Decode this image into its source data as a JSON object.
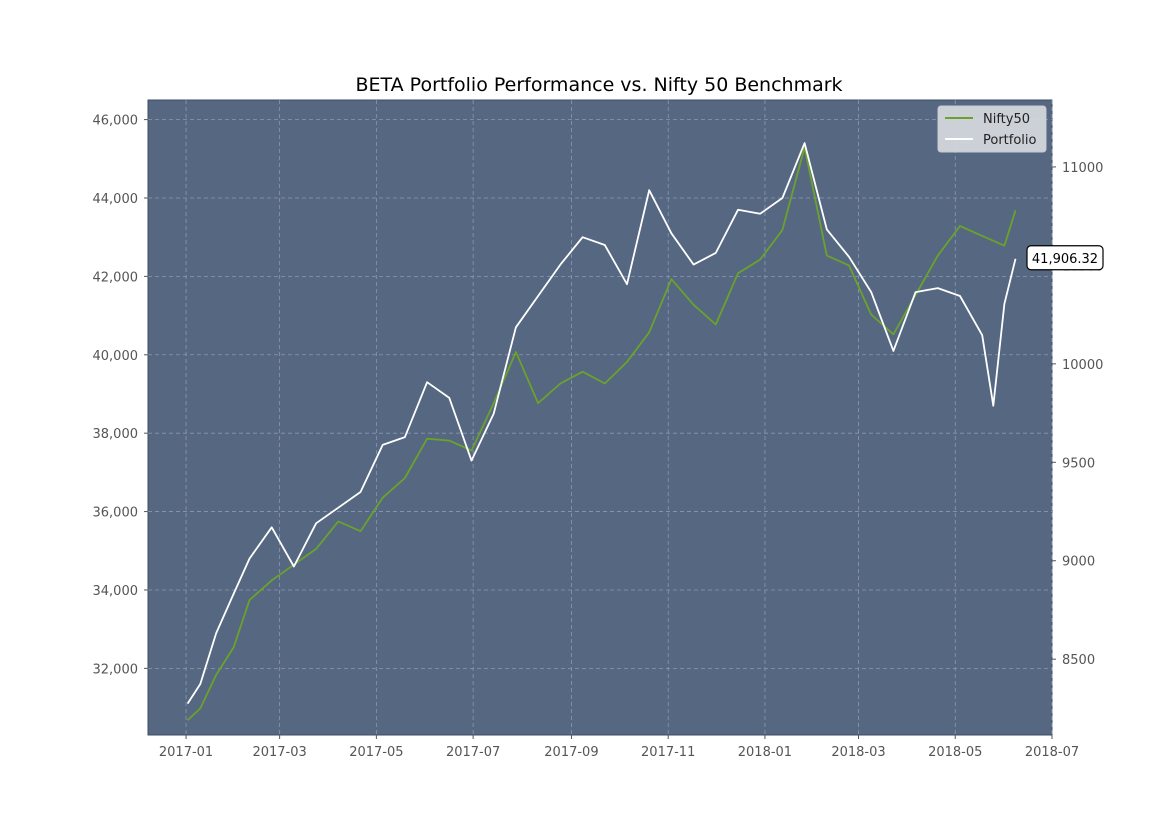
{
  "chart_data": {
    "type": "line",
    "title": "BETA Portfolio Performance vs. Nifty 50 Benchmark",
    "xlabel": "",
    "ylabel_left": "",
    "ylabel_right": "",
    "x_ticks": [
      "2017-01",
      "2017-03",
      "2017-05",
      "2017-07",
      "2017-09",
      "2017-11",
      "2018-01",
      "2018-03",
      "2018-05",
      "2018-07"
    ],
    "xlim": [
      "2016-12-08",
      "2018-07-01"
    ],
    "left_axis": {
      "ylim": [
        30300,
        46500
      ],
      "ticks": [
        32000,
        34000,
        36000,
        38000,
        40000,
        42000,
        44000,
        46000
      ],
      "tick_labels": [
        "32,000",
        "34,000",
        "36,000",
        "38,000",
        "40,000",
        "42,000",
        "44,000",
        "46,000"
      ]
    },
    "right_axis": {
      "ylim": [
        8115,
        11340
      ],
      "ticks": [
        8500,
        9000,
        9500,
        10000,
        10500,
        11000
      ],
      "tick_labels": [
        "8500",
        "9000",
        "9500",
        "10000",
        "10500",
        "11000"
      ]
    },
    "grid": true,
    "legend_position": "upper right",
    "series": [
      {
        "name": "Nifty50",
        "axis": "right",
        "color": "#6aa22c",
        "points": [
          [
            "2017-01-02",
            8190
          ],
          [
            "2017-01-10",
            8250
          ],
          [
            "2017-01-20",
            8420
          ],
          [
            "2017-01-31",
            8560
          ],
          [
            "2017-02-10",
            8800
          ],
          [
            "2017-02-24",
            8900
          ],
          [
            "2017-03-10",
            8980
          ],
          [
            "2017-03-24",
            9060
          ],
          [
            "2017-04-07",
            9200
          ],
          [
            "2017-04-21",
            9150
          ],
          [
            "2017-05-05",
            9320
          ],
          [
            "2017-05-19",
            9420
          ],
          [
            "2017-06-02",
            9620
          ],
          [
            "2017-06-16",
            9610
          ],
          [
            "2017-06-30",
            9560
          ],
          [
            "2017-07-14",
            9800
          ],
          [
            "2017-07-28",
            10060
          ],
          [
            "2017-08-11",
            9800
          ],
          [
            "2017-08-25",
            9900
          ],
          [
            "2017-09-08",
            9960
          ],
          [
            "2017-09-22",
            9900
          ],
          [
            "2017-10-06",
            10010
          ],
          [
            "2017-10-20",
            10160
          ],
          [
            "2017-11-03",
            10430
          ],
          [
            "2017-11-17",
            10300
          ],
          [
            "2017-12-01",
            10200
          ],
          [
            "2017-12-15",
            10460
          ],
          [
            "2017-12-29",
            10530
          ],
          [
            "2018-01-12",
            10680
          ],
          [
            "2018-01-26",
            11100
          ],
          [
            "2018-02-09",
            10550
          ],
          [
            "2018-02-23",
            10500
          ],
          [
            "2018-03-09",
            10250
          ],
          [
            "2018-03-23",
            10150
          ],
          [
            "2018-04-06",
            10350
          ],
          [
            "2018-04-20",
            10550
          ],
          [
            "2018-05-04",
            10700
          ],
          [
            "2018-05-18",
            10650
          ],
          [
            "2018-06-01",
            10600
          ],
          [
            "2018-06-08",
            10780
          ]
        ]
      },
      {
        "name": "Portfolio",
        "axis": "left",
        "color": "#ffffff",
        "points": [
          [
            "2017-01-02",
            31100
          ],
          [
            "2017-01-10",
            31600
          ],
          [
            "2017-01-20",
            32900
          ],
          [
            "2017-01-31",
            33900
          ],
          [
            "2017-02-10",
            34800
          ],
          [
            "2017-02-24",
            35600
          ],
          [
            "2017-03-10",
            34600
          ],
          [
            "2017-03-24",
            35700
          ],
          [
            "2017-04-07",
            36100
          ],
          [
            "2017-04-21",
            36500
          ],
          [
            "2017-05-05",
            37700
          ],
          [
            "2017-05-19",
            37900
          ],
          [
            "2017-06-02",
            39300
          ],
          [
            "2017-06-16",
            38900
          ],
          [
            "2017-06-30",
            37300
          ],
          [
            "2017-07-14",
            38500
          ],
          [
            "2017-07-28",
            40700
          ],
          [
            "2017-08-11",
            41500
          ],
          [
            "2017-08-25",
            42300
          ],
          [
            "2017-09-08",
            43000
          ],
          [
            "2017-09-22",
            42800
          ],
          [
            "2017-10-06",
            41800
          ],
          [
            "2017-10-20",
            44200
          ],
          [
            "2017-11-03",
            43100
          ],
          [
            "2017-11-17",
            42300
          ],
          [
            "2017-12-01",
            42600
          ],
          [
            "2017-12-15",
            43700
          ],
          [
            "2017-12-29",
            43600
          ],
          [
            "2018-01-12",
            44000
          ],
          [
            "2018-01-26",
            45400
          ],
          [
            "2018-02-09",
            43200
          ],
          [
            "2018-02-23",
            42500
          ],
          [
            "2018-03-09",
            41600
          ],
          [
            "2018-03-23",
            40100
          ],
          [
            "2018-04-06",
            41600
          ],
          [
            "2018-04-20",
            41700
          ],
          [
            "2018-05-04",
            41500
          ],
          [
            "2018-05-18",
            40500
          ],
          [
            "2018-05-25",
            38700
          ],
          [
            "2018-06-01",
            41300
          ],
          [
            "2018-06-08",
            42450
          ]
        ]
      }
    ],
    "annotation": {
      "text": "41,906.32"
    }
  }
}
